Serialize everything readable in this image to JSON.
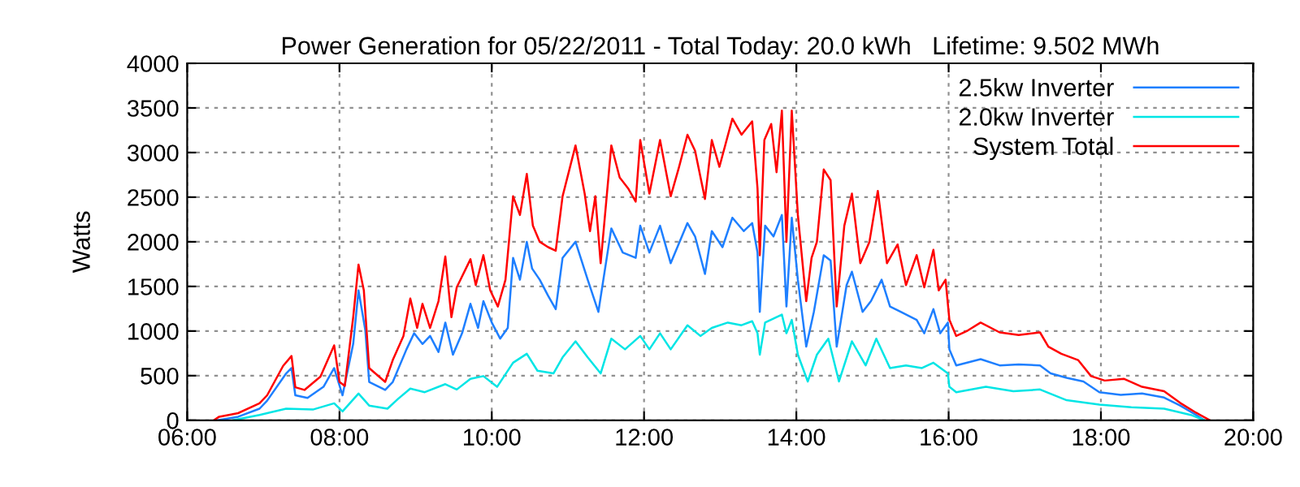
{
  "chart_data": {
    "type": "line",
    "title": "Power Generation for 05/22/2011 - Total Today: 20.0 kWh   Lifetime: 9.502 MWh",
    "ylabel": "Watts",
    "xlim": [
      6,
      20
    ],
    "xticks": [
      {
        "value": 6,
        "label": "06:00"
      },
      {
        "value": 8,
        "label": "08:00"
      },
      {
        "value": 10,
        "label": "10:00"
      },
      {
        "value": 12,
        "label": "12:00"
      },
      {
        "value": 14,
        "label": "14:00"
      },
      {
        "value": 16,
        "label": "16:00"
      },
      {
        "value": 18,
        "label": "18:00"
      },
      {
        "value": 20,
        "label": "20:00"
      }
    ],
    "ylim": [
      0,
      4000
    ],
    "yticks": [
      0,
      500,
      1000,
      1500,
      2000,
      2500,
      3000,
      3500,
      4000
    ],
    "grid": true,
    "legend": "top right",
    "line_style": "solid",
    "marker": "none",
    "series": [
      {
        "name": "2.5kw Inverter",
        "color": "#1e7fff",
        "x": [
          6.4,
          6.67,
          6.95,
          7.05,
          7.3,
          7.37,
          7.42,
          7.58,
          7.79,
          7.93,
          8.04,
          8.18,
          8.25,
          8.34,
          8.39,
          8.6,
          8.7,
          8.88,
          8.98,
          9.09,
          9.19,
          9.3,
          9.39,
          9.49,
          9.61,
          9.72,
          9.82,
          9.89,
          10.0,
          10.11,
          10.21,
          10.28,
          10.37,
          10.46,
          10.53,
          10.63,
          10.74,
          10.84,
          10.93,
          11.1,
          11.26,
          11.4,
          11.57,
          11.72,
          11.89,
          11.95,
          12.07,
          12.21,
          12.35,
          12.57,
          12.67,
          12.8,
          12.89,
          13.03,
          13.16,
          13.31,
          13.42,
          13.49,
          13.52,
          13.59,
          13.7,
          13.81,
          13.87,
          13.94,
          14.02,
          14.13,
          14.23,
          14.36,
          14.45,
          14.53,
          14.66,
          14.73,
          14.87,
          14.98,
          15.12,
          15.23,
          15.37,
          15.58,
          15.68,
          15.8,
          15.89,
          15.99,
          16.01,
          16.1,
          16.42,
          16.67,
          16.92,
          17.2,
          17.34,
          17.55,
          17.77,
          17.98,
          18.26,
          18.54,
          18.83,
          19.04,
          19.25,
          19.36
        ],
        "values": [
          0,
          40,
          130,
          220,
          525,
          585,
          280,
          250,
          375,
          585,
          280,
          855,
          1455,
          1005,
          430,
          340,
          430,
          795,
          975,
          855,
          945,
          765,
          1095,
          735,
          975,
          1305,
          1035,
          1335,
          1095,
          915,
          1035,
          1820,
          1575,
          2000,
          1700,
          1575,
          1395,
          1245,
          1820,
          2000,
          1575,
          1215,
          2150,
          1880,
          1820,
          2180,
          1880,
          2180,
          1760,
          2210,
          2060,
          1640,
          2120,
          1940,
          2270,
          2120,
          2210,
          1880,
          1215,
          2180,
          2060,
          2300,
          1275,
          2270,
          1575,
          825,
          1215,
          1850,
          1790,
          825,
          1515,
          1665,
          1215,
          1335,
          1575,
          1275,
          1215,
          1125,
          975,
          1245,
          975,
          1095,
          795,
          615,
          685,
          615,
          625,
          615,
          525,
          475,
          435,
          315,
          285,
          300,
          255,
          165,
          60,
          0
        ]
      },
      {
        "name": "2.0kw Inverter",
        "color": "#00e5e5",
        "x": [
          6.6,
          6.95,
          7.3,
          7.65,
          7.93,
          8.04,
          8.25,
          8.39,
          8.63,
          8.77,
          8.93,
          9.12,
          9.39,
          9.54,
          9.72,
          9.89,
          10.07,
          10.28,
          10.46,
          10.6,
          10.81,
          10.93,
          11.1,
          11.26,
          11.43,
          11.57,
          11.75,
          11.95,
          12.07,
          12.21,
          12.35,
          12.57,
          12.74,
          12.89,
          13.1,
          13.28,
          13.42,
          13.49,
          13.52,
          13.59,
          13.81,
          13.87,
          13.94,
          14.02,
          14.15,
          14.27,
          14.42,
          14.56,
          14.73,
          14.91,
          15.05,
          15.23,
          15.44,
          15.65,
          15.8,
          15.99,
          16.01,
          16.1,
          16.49,
          16.85,
          17.2,
          17.55,
          17.98,
          18.4,
          18.83,
          19.18,
          19.36
        ],
        "values": [
          0,
          60,
          130,
          120,
          190,
          100,
          300,
          165,
          130,
          240,
          355,
          315,
          405,
          345,
          465,
          495,
          375,
          645,
          745,
          555,
          525,
          705,
          885,
          705,
          525,
          915,
          795,
          945,
          795,
          975,
          795,
          1065,
          945,
          1035,
          1095,
          1065,
          1110,
          975,
          735,
          1095,
          1185,
          975,
          1125,
          735,
          435,
          735,
          915,
          435,
          885,
          615,
          915,
          585,
          615,
          585,
          645,
          525,
          375,
          315,
          375,
          325,
          345,
          225,
          175,
          145,
          130,
          60,
          0
        ]
      },
      {
        "name": "System Total",
        "color": "#ff0000",
        "x": [
          6.35,
          6.42,
          6.67,
          6.95,
          7.05,
          7.26,
          7.37,
          7.42,
          7.54,
          7.75,
          7.93,
          8.0,
          8.07,
          8.18,
          8.25,
          8.32,
          8.39,
          8.6,
          8.7,
          8.84,
          8.93,
          9.02,
          9.09,
          9.19,
          9.3,
          9.39,
          9.47,
          9.54,
          9.72,
          9.79,
          9.89,
          9.98,
          10.08,
          10.18,
          10.28,
          10.37,
          10.46,
          10.54,
          10.63,
          10.74,
          10.84,
          10.93,
          11.1,
          11.22,
          11.29,
          11.36,
          11.43,
          11.57,
          11.68,
          11.79,
          11.89,
          11.95,
          12.07,
          12.21,
          12.35,
          12.46,
          12.57,
          12.67,
          12.8,
          12.89,
          12.99,
          13.16,
          13.28,
          13.42,
          13.49,
          13.52,
          13.58,
          13.67,
          13.74,
          13.81,
          13.87,
          13.94,
          14.02,
          14.13,
          14.2,
          14.27,
          14.36,
          14.45,
          14.53,
          14.63,
          14.73,
          14.84,
          14.96,
          15.07,
          15.19,
          15.33,
          15.44,
          15.58,
          15.68,
          15.8,
          15.87,
          15.96,
          16.01,
          16.1,
          16.25,
          16.42,
          16.67,
          16.92,
          17.2,
          17.31,
          17.48,
          17.7,
          17.87,
          18.05,
          18.3,
          18.54,
          18.83,
          19.04,
          19.25,
          19.43
        ],
        "values": [
          0,
          40,
          80,
          190,
          280,
          610,
          720,
          370,
          340,
          490,
          840,
          430,
          385,
          1155,
          1745,
          1455,
          585,
          430,
          675,
          945,
          1365,
          1035,
          1305,
          1035,
          1335,
          1835,
          1155,
          1490,
          1805,
          1515,
          1850,
          1455,
          1275,
          1575,
          2510,
          2300,
          2760,
          2180,
          2000,
          1940,
          1900,
          2510,
          3080,
          2540,
          2120,
          2510,
          1760,
          3080,
          2720,
          2600,
          2450,
          3140,
          2540,
          3140,
          2510,
          2840,
          3200,
          3020,
          2480,
          3140,
          2840,
          3380,
          3200,
          3350,
          2600,
          1850,
          3140,
          3320,
          2780,
          3470,
          2000,
          3470,
          2300,
          1335,
          1820,
          2000,
          2810,
          2690,
          1275,
          2180,
          2540,
          1760,
          2000,
          2570,
          1760,
          1970,
          1515,
          1850,
          1490,
          1910,
          1455,
          1575,
          1125,
          945,
          1005,
          1095,
          985,
          955,
          985,
          825,
          745,
          675,
          495,
          445,
          465,
          375,
          325,
          195,
          85,
          0
        ]
      }
    ]
  }
}
